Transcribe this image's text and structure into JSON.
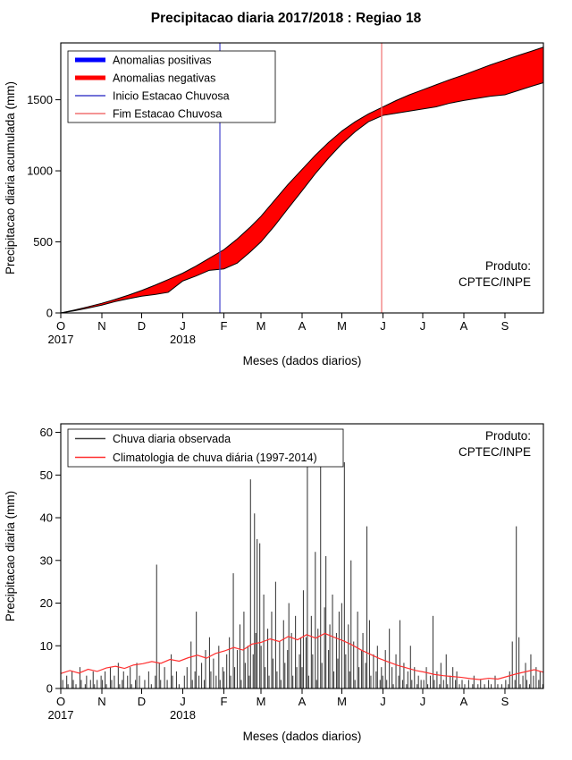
{
  "title": "Precipitacao diaria 2017/2018 : Regiao 18",
  "chart_data": [
    {
      "id": "cumulative",
      "type": "area",
      "xlabel": "Meses (dados diarios)",
      "ylabel": "Precipitacao diaria acumulada (mm)",
      "ylim": [
        0,
        1900
      ],
      "yticks": [
        0,
        500,
        1000,
        1500
      ],
      "x_month_ticks": {
        "days": [
          0,
          31,
          61,
          92,
          123,
          151,
          182,
          212,
          243,
          273,
          304,
          335
        ],
        "labels": [
          "O",
          "N",
          "D",
          "J",
          "F",
          "M",
          "A",
          "M",
          "J",
          "J",
          "A",
          "S"
        ]
      },
      "year_labels": [
        {
          "day": 0,
          "label": "2017"
        },
        {
          "day": 92,
          "label": "2018"
        }
      ],
      "legend": [
        {
          "label": "Anomalias positivas",
          "color": "#0000ff",
          "thick": true
        },
        {
          "label": "Anomalias negativas",
          "color": "#ff0000",
          "thick": true
        },
        {
          "label": "Inicio Estacao Chuvosa",
          "color": "#4444cc",
          "thick": false
        },
        {
          "label": "Fim Estacao Chuvosa",
          "color": "#f07070",
          "thick": false
        }
      ],
      "vlines": [
        {
          "name": "inicio-estacao-chuvosa",
          "day": 120,
          "color": "#4444cc"
        },
        {
          "name": "fim-estacao-chuvosa",
          "day": 242,
          "color": "#f07070"
        }
      ],
      "anomaly_fill": "#ff0000",
      "curve_stroke": "#000000",
      "series": {
        "days": [
          0,
          10,
          20,
          31,
          41,
          51,
          61,
          71,
          81,
          92,
          102,
          112,
          123,
          133,
          143,
          151,
          161,
          171,
          182,
          192,
          202,
          212,
          222,
          232,
          243,
          253,
          263,
          273,
          283,
          293,
          304,
          314,
          324,
          335,
          345,
          355,
          364
        ],
        "climatology_accumulated": [
          0,
          20,
          42,
          68,
          95,
          125,
          158,
          195,
          235,
          280,
          330,
          385,
          445,
          520,
          605,
          680,
          790,
          900,
          1010,
          1110,
          1200,
          1280,
          1345,
          1400,
          1450,
          1495,
          1535,
          1570,
          1605,
          1640,
          1675,
          1710,
          1745,
          1780,
          1812,
          1842,
          1870
        ],
        "observed_accumulated": [
          0,
          15,
          33,
          55,
          80,
          100,
          118,
          130,
          145,
          225,
          260,
          300,
          310,
          350,
          430,
          500,
          610,
          730,
          860,
          980,
          1090,
          1190,
          1275,
          1345,
          1390,
          1405,
          1420,
          1435,
          1450,
          1475,
          1495,
          1510,
          1525,
          1535,
          1565,
          1595,
          1620
        ]
      },
      "produto": [
        "Produto:",
        "CPTEC/INPE"
      ],
      "produto_corner": "bottom-right"
    },
    {
      "id": "daily",
      "type": "bar",
      "xlabel": "Meses (dados diarios)",
      "ylabel": "Precipitacao diaria (mm)",
      "ylim": [
        0,
        62
      ],
      "yticks": [
        0,
        10,
        20,
        30,
        40,
        50,
        60
      ],
      "x_month_ticks": {
        "days": [
          0,
          31,
          61,
          92,
          123,
          151,
          182,
          212,
          243,
          273,
          304,
          335
        ],
        "labels": [
          "O",
          "N",
          "D",
          "J",
          "F",
          "M",
          "A",
          "M",
          "J",
          "J",
          "A",
          "S"
        ]
      },
      "year_labels": [
        {
          "day": 0,
          "label": "2017"
        },
        {
          "day": 92,
          "label": "2018"
        }
      ],
      "legend": [
        {
          "label": "Chuva diaria observada",
          "color": "#404040",
          "thick": false
        },
        {
          "label": "Climatologia de chuva diária (1997-2014)",
          "color": "#ff3030",
          "thick": false
        }
      ],
      "bar_color": "#404040",
      "line_color": "#ff3030",
      "daily_observed": [
        0,
        2,
        0,
        0,
        3,
        1,
        0,
        0,
        4,
        2,
        0,
        1,
        0,
        0,
        5,
        2,
        0,
        0,
        1,
        3,
        0,
        0,
        2,
        0,
        4,
        1,
        0,
        2,
        0,
        0,
        3,
        2,
        0,
        4,
        1,
        0,
        0,
        5,
        2,
        0,
        3,
        0,
        0,
        6,
        1,
        0,
        2,
        4,
        0,
        0,
        3,
        0,
        5,
        1,
        0,
        0,
        2,
        6,
        0,
        3,
        0,
        0,
        0,
        2,
        0,
        0,
        4,
        0,
        1,
        0,
        0,
        3,
        29,
        0,
        6,
        2,
        0,
        0,
        5,
        0,
        2,
        0,
        0,
        8,
        3,
        0,
        0,
        4,
        0,
        1,
        0,
        0,
        0,
        3,
        0,
        5,
        0,
        0,
        11,
        2,
        0,
        4,
        18,
        0,
        3,
        0,
        6,
        0,
        2,
        9,
        0,
        0,
        12,
        4,
        0,
        7,
        0,
        3,
        0,
        10,
        2,
        0,
        5,
        4,
        0,
        8,
        0,
        12,
        3,
        0,
        27,
        5,
        0,
        9,
        0,
        15,
        2,
        0,
        18,
        6,
        0,
        10,
        3,
        49,
        0,
        8,
        41,
        13,
        35,
        0,
        34,
        10,
        0,
        22,
        5,
        0,
        14,
        3,
        0,
        18,
        7,
        0,
        25,
        4,
        0,
        11,
        2,
        0,
        16,
        6,
        0,
        9,
        20,
        0,
        13,
        3,
        0,
        17,
        5,
        0,
        8,
        12,
        5,
        23,
        0,
        12,
        54,
        3,
        0,
        17,
        8,
        0,
        32,
        2,
        14,
        0,
        53,
        6,
        0,
        19,
        31,
        0,
        9,
        15,
        0,
        22,
        4,
        0,
        13,
        7,
        18,
        0,
        20,
        0,
        53,
        8,
        0,
        15,
        4,
        30,
        0,
        11,
        2,
        0,
        18,
        5,
        0,
        9,
        13,
        0,
        6,
        38,
        0,
        16,
        3,
        0,
        8,
        0,
        4,
        10,
        0,
        2,
        5,
        3,
        0,
        9,
        2,
        0,
        14,
        0,
        5,
        1,
        0,
        8,
        0,
        3,
        16,
        0,
        2,
        6,
        0,
        1,
        4,
        0,
        10,
        2,
        0,
        5,
        0,
        1,
        3,
        0,
        2,
        0,
        2,
        0,
        5,
        1,
        0,
        3,
        0,
        17,
        2,
        0,
        4,
        0,
        1,
        6,
        0,
        2,
        0,
        8,
        1,
        0,
        3,
        0,
        5,
        0,
        2,
        4,
        0,
        1,
        0,
        2,
        0,
        1,
        0,
        0,
        2,
        0,
        0,
        1,
        3,
        0,
        0,
        1,
        0,
        2,
        0,
        0,
        1,
        0,
        0,
        2,
        0,
        1,
        0,
        0,
        3,
        0,
        1,
        0,
        0,
        1,
        0,
        0,
        2,
        0,
        1,
        4,
        0,
        11,
        0,
        2,
        38,
        0,
        12,
        1,
        0,
        3,
        0,
        6,
        2,
        0,
        1,
        8,
        0,
        3,
        0,
        5,
        0,
        2,
        4,
        0,
        1
      ],
      "climatology_weekly": [
        3.5,
        4.2,
        3.6,
        4.5,
        4.0,
        4.8,
        5.2,
        4.7,
        5.5,
        5.8,
        6.3,
        5.9,
        6.8,
        6.4,
        7.2,
        7.8,
        7.1,
        8.2,
        8.8,
        9.6,
        9.0,
        10.4,
        10.8,
        11.6,
        11.0,
        12.2,
        11.4,
        12.6,
        11.8,
        12.9,
        12.0,
        11.2,
        10.2,
        9.0,
        8.0,
        7.0,
        6.2,
        5.4,
        4.8,
        4.2,
        3.8,
        3.3,
        3.0,
        2.8,
        2.6,
        2.3,
        2.1,
        2.4,
        2.2,
        2.8,
        3.4,
        3.9,
        4.4,
        3.8
      ],
      "produto": [
        "Produto:",
        "CPTEC/INPE"
      ],
      "produto_corner": "top-right"
    }
  ]
}
